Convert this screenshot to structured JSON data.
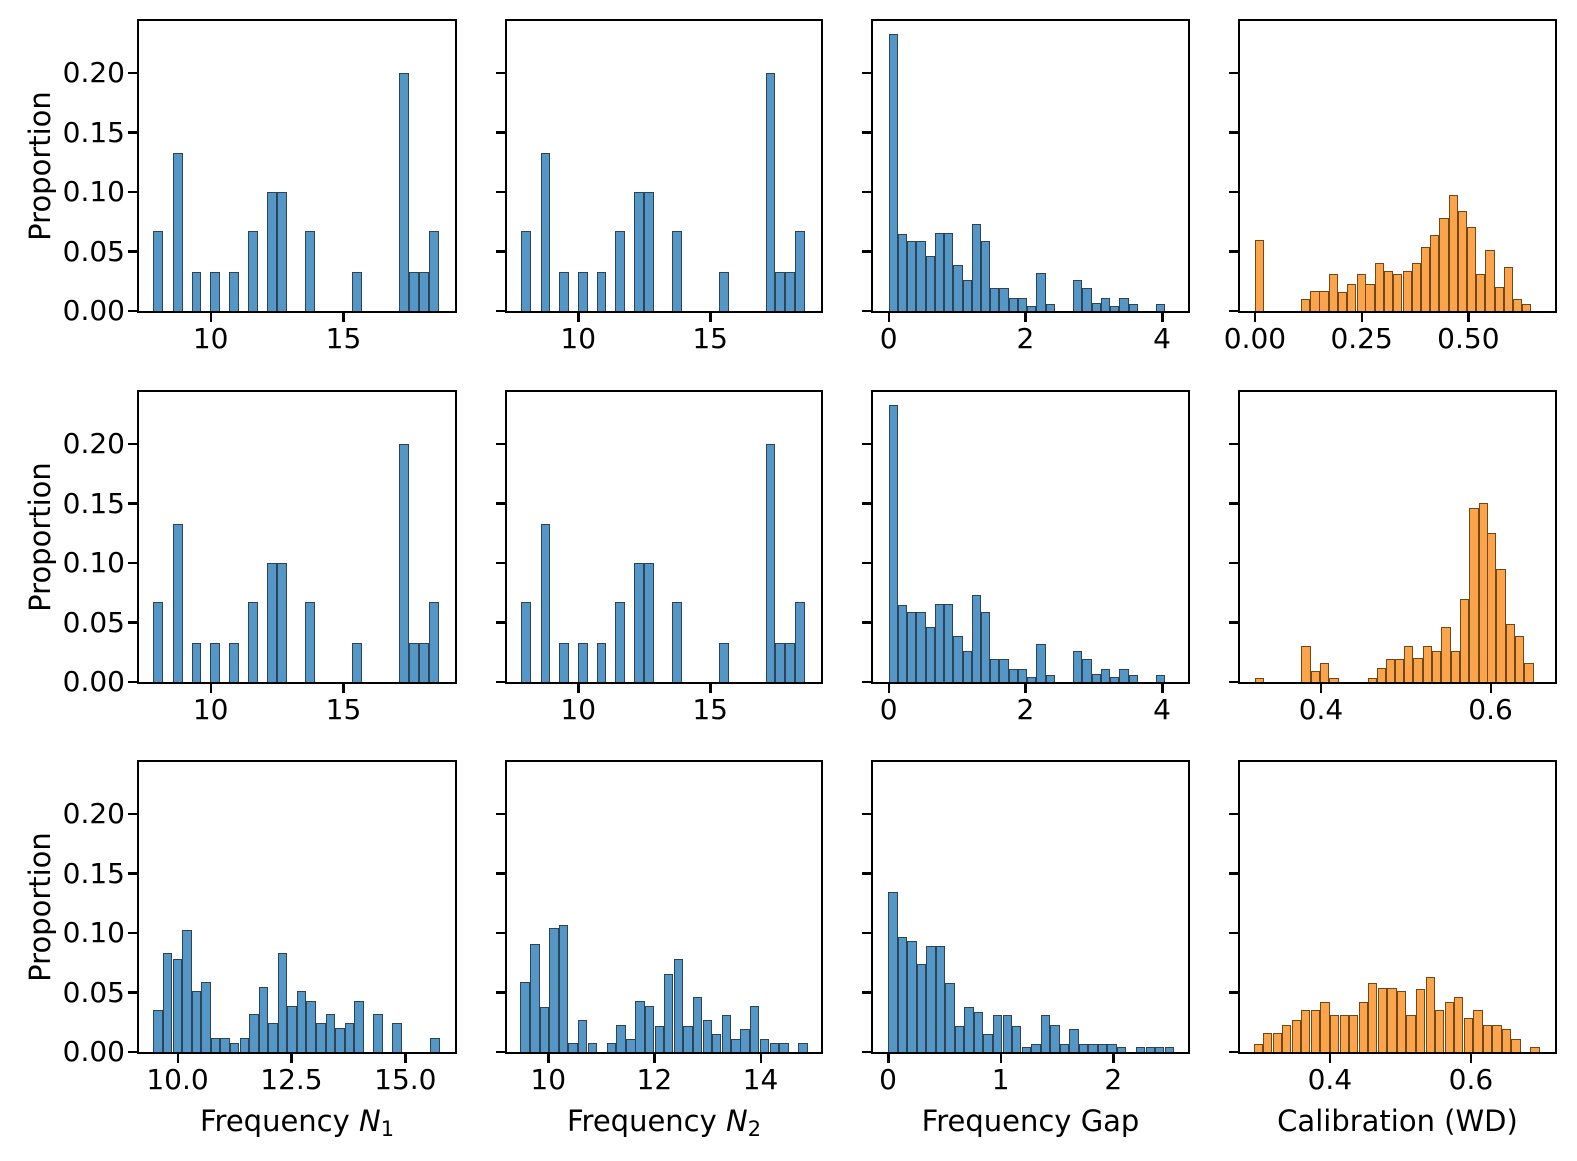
{
  "figure": {
    "background": "#ffffff",
    "description_labels": {
      "ylabel": "Proportion"
    }
  },
  "chart_data": {
    "type": "bar",
    "subtype": "histogram-grid",
    "rows": 3,
    "cols": 4,
    "ylabel": "Proportion",
    "ylim": [
      0,
      0.244
    ],
    "grid": "off",
    "legend": "none",
    "yticks": [
      {
        "v": 0.0,
        "label": "0.00"
      },
      {
        "v": 0.05,
        "label": "0.05"
      },
      {
        "v": 0.1,
        "label": "0.10"
      },
      {
        "v": 0.15,
        "label": "0.15"
      },
      {
        "v": 0.2,
        "label": "0.20"
      }
    ],
    "colors": {
      "blue_fill": "#5496C6",
      "blue_edge": "#2E4455",
      "orange_fill": "#FBA44C",
      "orange_edge": "#6E4917"
    },
    "datasets": {
      "freq_n_top": {
        "binw": 0.37,
        "bars": [
          [
            7.84,
            0.067
          ],
          [
            8.57,
            0.133
          ],
          [
            9.28,
            0.033
          ],
          [
            9.99,
            0.033
          ],
          [
            10.7,
            0.033
          ],
          [
            11.4,
            0.067
          ],
          [
            12.12,
            0.1
          ],
          [
            12.49,
            0.1
          ],
          [
            13.55,
            0.067
          ],
          [
            15.33,
            0.033
          ],
          [
            17.1,
            0.2
          ],
          [
            17.47,
            0.033
          ],
          [
            17.84,
            0.033
          ],
          [
            18.21,
            0.067
          ]
        ]
      },
      "gap_top": {
        "binw": 0.135,
        "bars": [
          [
            0.0,
            0.233
          ],
          [
            0.135,
            0.065
          ],
          [
            0.27,
            0.059
          ],
          [
            0.405,
            0.059
          ],
          [
            0.54,
            0.046
          ],
          [
            0.675,
            0.066
          ],
          [
            0.81,
            0.066
          ],
          [
            0.945,
            0.039
          ],
          [
            1.08,
            0.026
          ],
          [
            1.215,
            0.073
          ],
          [
            1.35,
            0.059
          ],
          [
            1.485,
            0.019
          ],
          [
            1.62,
            0.019
          ],
          [
            1.755,
            0.011
          ],
          [
            1.89,
            0.011
          ],
          [
            2.025,
            0.004
          ],
          [
            2.16,
            0.032
          ],
          [
            2.295,
            0.006
          ],
          [
            2.7,
            0.026
          ],
          [
            2.835,
            0.019
          ],
          [
            2.97,
            0.007
          ],
          [
            3.105,
            0.011
          ],
          [
            3.24,
            0.004
          ],
          [
            3.375,
            0.011
          ],
          [
            3.51,
            0.006
          ],
          [
            3.915,
            0.006
          ]
        ]
      },
      "cal_top": {
        "binw": 0.0216,
        "bars": [
          [
            0.0,
            0.06
          ],
          [
            0.108,
            0.01
          ],
          [
            0.13,
            0.017
          ],
          [
            0.151,
            0.017
          ],
          [
            0.173,
            0.031
          ],
          [
            0.194,
            0.016
          ],
          [
            0.216,
            0.023
          ],
          [
            0.238,
            0.031
          ],
          [
            0.259,
            0.023
          ],
          [
            0.281,
            0.04
          ],
          [
            0.302,
            0.034
          ],
          [
            0.324,
            0.031
          ],
          [
            0.346,
            0.034
          ],
          [
            0.367,
            0.04
          ],
          [
            0.389,
            0.054
          ],
          [
            0.41,
            0.064
          ],
          [
            0.432,
            0.078
          ],
          [
            0.454,
            0.098
          ],
          [
            0.475,
            0.084
          ],
          [
            0.497,
            0.071
          ],
          [
            0.518,
            0.031
          ],
          [
            0.54,
            0.051
          ],
          [
            0.562,
            0.02
          ],
          [
            0.583,
            0.037
          ],
          [
            0.605,
            0.01
          ],
          [
            0.626,
            0.006
          ]
        ]
      },
      "cal_mid": {
        "binw": 0.0109,
        "bars": [
          [
            0.322,
            0.003
          ],
          [
            0.377,
            0.03
          ],
          [
            0.388,
            0.009
          ],
          [
            0.399,
            0.016
          ],
          [
            0.41,
            0.003
          ],
          [
            0.455,
            0.003
          ],
          [
            0.466,
            0.012
          ],
          [
            0.477,
            0.019
          ],
          [
            0.487,
            0.019
          ],
          [
            0.498,
            0.03
          ],
          [
            0.509,
            0.02
          ],
          [
            0.52,
            0.03
          ],
          [
            0.531,
            0.026
          ],
          [
            0.542,
            0.046
          ],
          [
            0.553,
            0.026
          ],
          [
            0.564,
            0.07
          ],
          [
            0.575,
            0.146
          ],
          [
            0.586,
            0.151
          ],
          [
            0.596,
            0.125
          ],
          [
            0.607,
            0.095
          ],
          [
            0.618,
            0.049
          ],
          [
            0.629,
            0.039
          ],
          [
            0.64,
            0.016
          ]
        ]
      },
      "n1_bottom": {
        "binw": 0.208,
        "bars": [
          [
            9.47,
            0.035
          ],
          [
            9.68,
            0.083
          ],
          [
            9.89,
            0.078
          ],
          [
            10.1,
            0.103
          ],
          [
            10.31,
            0.051
          ],
          [
            10.52,
            0.059
          ],
          [
            10.73,
            0.012
          ],
          [
            10.94,
            0.012
          ],
          [
            11.15,
            0.008
          ],
          [
            11.36,
            0.012
          ],
          [
            11.57,
            0.032
          ],
          [
            11.78,
            0.055
          ],
          [
            11.99,
            0.024
          ],
          [
            12.2,
            0.083
          ],
          [
            12.41,
            0.039
          ],
          [
            12.62,
            0.051
          ],
          [
            12.83,
            0.043
          ],
          [
            13.04,
            0.024
          ],
          [
            13.25,
            0.032
          ],
          [
            13.46,
            0.02
          ],
          [
            13.67,
            0.024
          ],
          [
            13.88,
            0.043
          ],
          [
            14.3,
            0.032
          ],
          [
            14.71,
            0.024
          ],
          [
            15.55,
            0.012
          ]
        ]
      },
      "n2_bottom": {
        "binw": 0.179,
        "bars": [
          [
            9.47,
            0.059
          ],
          [
            9.66,
            0.091
          ],
          [
            9.84,
            0.038
          ],
          [
            10.02,
            0.104
          ],
          [
            10.2,
            0.107
          ],
          [
            10.38,
            0.008
          ],
          [
            10.56,
            0.027
          ],
          [
            10.74,
            0.008
          ],
          [
            11.1,
            0.008
          ],
          [
            11.28,
            0.023
          ],
          [
            11.47,
            0.011
          ],
          [
            11.64,
            0.043
          ],
          [
            11.82,
            0.039
          ],
          [
            12.01,
            0.022
          ],
          [
            12.18,
            0.066
          ],
          [
            12.37,
            0.078
          ],
          [
            12.54,
            0.022
          ],
          [
            12.72,
            0.046
          ],
          [
            12.91,
            0.027
          ],
          [
            13.08,
            0.015
          ],
          [
            13.27,
            0.031
          ],
          [
            13.45,
            0.011
          ],
          [
            13.62,
            0.019
          ],
          [
            13.8,
            0.039
          ],
          [
            13.99,
            0.011
          ],
          [
            14.17,
            0.008
          ],
          [
            14.35,
            0.008
          ],
          [
            14.71,
            0.008
          ]
        ]
      },
      "gap_bottom": {
        "binw": 0.084,
        "bars": [
          [
            0.0,
            0.135
          ],
          [
            0.085,
            0.097
          ],
          [
            0.169,
            0.093
          ],
          [
            0.254,
            0.074
          ],
          [
            0.339,
            0.089
          ],
          [
            0.423,
            0.089
          ],
          [
            0.508,
            0.058
          ],
          [
            0.593,
            0.022
          ],
          [
            0.677,
            0.038
          ],
          [
            0.762,
            0.034
          ],
          [
            0.847,
            0.015
          ],
          [
            0.931,
            0.031
          ],
          [
            1.016,
            0.031
          ],
          [
            1.1,
            0.022
          ],
          [
            1.185,
            0.004
          ],
          [
            1.27,
            0.007
          ],
          [
            1.354,
            0.031
          ],
          [
            1.439,
            0.023
          ],
          [
            1.524,
            0.007
          ],
          [
            1.608,
            0.019
          ],
          [
            1.693,
            0.007
          ],
          [
            1.778,
            0.007
          ],
          [
            1.862,
            0.007
          ],
          [
            1.947,
            0.007
          ],
          [
            2.032,
            0.004
          ],
          [
            2.201,
            0.004
          ],
          [
            2.286,
            0.004
          ],
          [
            2.37,
            0.004
          ],
          [
            2.455,
            0.004
          ]
        ]
      },
      "cal_bottom": {
        "binw": 0.0135,
        "bars": [
          [
            0.292,
            0.007
          ],
          [
            0.305,
            0.016
          ],
          [
            0.319,
            0.016
          ],
          [
            0.332,
            0.023
          ],
          [
            0.346,
            0.027
          ],
          [
            0.359,
            0.035
          ],
          [
            0.373,
            0.035
          ],
          [
            0.386,
            0.042
          ],
          [
            0.4,
            0.031
          ],
          [
            0.414,
            0.031
          ],
          [
            0.427,
            0.031
          ],
          [
            0.441,
            0.042
          ],
          [
            0.454,
            0.058
          ],
          [
            0.468,
            0.054
          ],
          [
            0.481,
            0.054
          ],
          [
            0.495,
            0.051
          ],
          [
            0.508,
            0.031
          ],
          [
            0.522,
            0.053
          ],
          [
            0.536,
            0.063
          ],
          [
            0.549,
            0.035
          ],
          [
            0.563,
            0.042
          ],
          [
            0.576,
            0.046
          ],
          [
            0.59,
            0.029
          ],
          [
            0.603,
            0.035
          ],
          [
            0.617,
            0.023
          ],
          [
            0.63,
            0.023
          ],
          [
            0.644,
            0.019
          ],
          [
            0.657,
            0.011
          ],
          [
            0.684,
            0.004
          ]
        ]
      }
    },
    "panels": [
      {
        "r": 0,
        "c": 0,
        "ds": "freq_n_top",
        "color": "blue",
        "xlim": [
          7.3,
          19.2
        ],
        "xticks": [
          {
            "v": 10,
            "label": "10"
          },
          {
            "v": 15,
            "label": "15"
          }
        ],
        "yticklabels": true
      },
      {
        "r": 0,
        "c": 1,
        "ds": "freq_n_top",
        "color": "blue",
        "xlim": [
          7.3,
          19.2
        ],
        "xticks": [
          {
            "v": 10,
            "label": "10"
          },
          {
            "v": 15,
            "label": "15"
          }
        ]
      },
      {
        "r": 0,
        "c": 2,
        "ds": "gap_top",
        "color": "blue",
        "xlim": [
          -0.23,
          4.38
        ],
        "xticks": [
          {
            "v": 0,
            "label": "0"
          },
          {
            "v": 2,
            "label": "2"
          },
          {
            "v": 4,
            "label": "4"
          }
        ]
      },
      {
        "r": 0,
        "c": 3,
        "ds": "cal_top",
        "color": "orange",
        "xlim": [
          -0.035,
          0.703
        ],
        "xticks": [
          {
            "v": 0,
            "label": "0.00"
          },
          {
            "v": 0.25,
            "label": "0.25"
          },
          {
            "v": 0.5,
            "label": "0.50"
          }
        ]
      },
      {
        "r": 1,
        "c": 0,
        "ds": "freq_n_top",
        "color": "blue",
        "xlim": [
          7.3,
          19.2
        ],
        "xticks": [
          {
            "v": 10,
            "label": "10"
          },
          {
            "v": 15,
            "label": "15"
          }
        ],
        "yticklabels": true
      },
      {
        "r": 1,
        "c": 1,
        "ds": "freq_n_top",
        "color": "blue",
        "xlim": [
          7.3,
          19.2
        ],
        "xticks": [
          {
            "v": 10,
            "label": "10"
          },
          {
            "v": 15,
            "label": "15"
          }
        ]
      },
      {
        "r": 1,
        "c": 2,
        "ds": "gap_top",
        "color": "blue",
        "xlim": [
          -0.23,
          4.38
        ],
        "xticks": [
          {
            "v": 0,
            "label": "0"
          },
          {
            "v": 2,
            "label": "2"
          },
          {
            "v": 4,
            "label": "4"
          }
        ]
      },
      {
        "r": 1,
        "c": 3,
        "ds": "cal_mid",
        "color": "orange",
        "xlim": [
          0.3045,
          0.676
        ],
        "xticks": [
          {
            "v": 0.4,
            "label": "0.4"
          },
          {
            "v": 0.6,
            "label": "0.6"
          }
        ]
      },
      {
        "r": 2,
        "c": 0,
        "ds": "n1_bottom",
        "color": "blue",
        "xlim": [
          9.154,
          16.09
        ],
        "xticks": [
          {
            "v": 10,
            "label": "10.0"
          },
          {
            "v": 12.5,
            "label": "12.5"
          },
          {
            "v": 15,
            "label": "15.0"
          }
        ],
        "yticklabels": true,
        "xlabel": {
          "pre": "Frequency ",
          "var": "N",
          "sub": "1"
        }
      },
      {
        "r": 2,
        "c": 1,
        "ds": "n2_bottom",
        "color": "blue",
        "xlim": [
          9.223,
          15.14
        ],
        "xticks": [
          {
            "v": 10,
            "label": "10"
          },
          {
            "v": 12,
            "label": "12"
          },
          {
            "v": 14,
            "label": "14"
          }
        ],
        "xlabel": {
          "pre": "Frequency ",
          "var": "N",
          "sub": "2"
        }
      },
      {
        "r": 2,
        "c": 2,
        "ds": "gap_bottom",
        "color": "blue",
        "xlim": [
          -0.134,
          2.663
        ],
        "xticks": [
          {
            "v": 0,
            "label": "0"
          },
          {
            "v": 1,
            "label": "1"
          },
          {
            "v": 2,
            "label": "2"
          }
        ],
        "xlabel": {
          "pre": "Frequency Gap"
        }
      },
      {
        "r": 2,
        "c": 3,
        "ds": "cal_bottom",
        "color": "orange",
        "xlim": [
          0.2725,
          0.7193
        ],
        "xticks": [
          {
            "v": 0.4,
            "label": "0.4"
          },
          {
            "v": 0.6,
            "label": "0.6"
          }
        ],
        "xlabel": {
          "pre": "Calibration (WD)"
        }
      }
    ]
  }
}
